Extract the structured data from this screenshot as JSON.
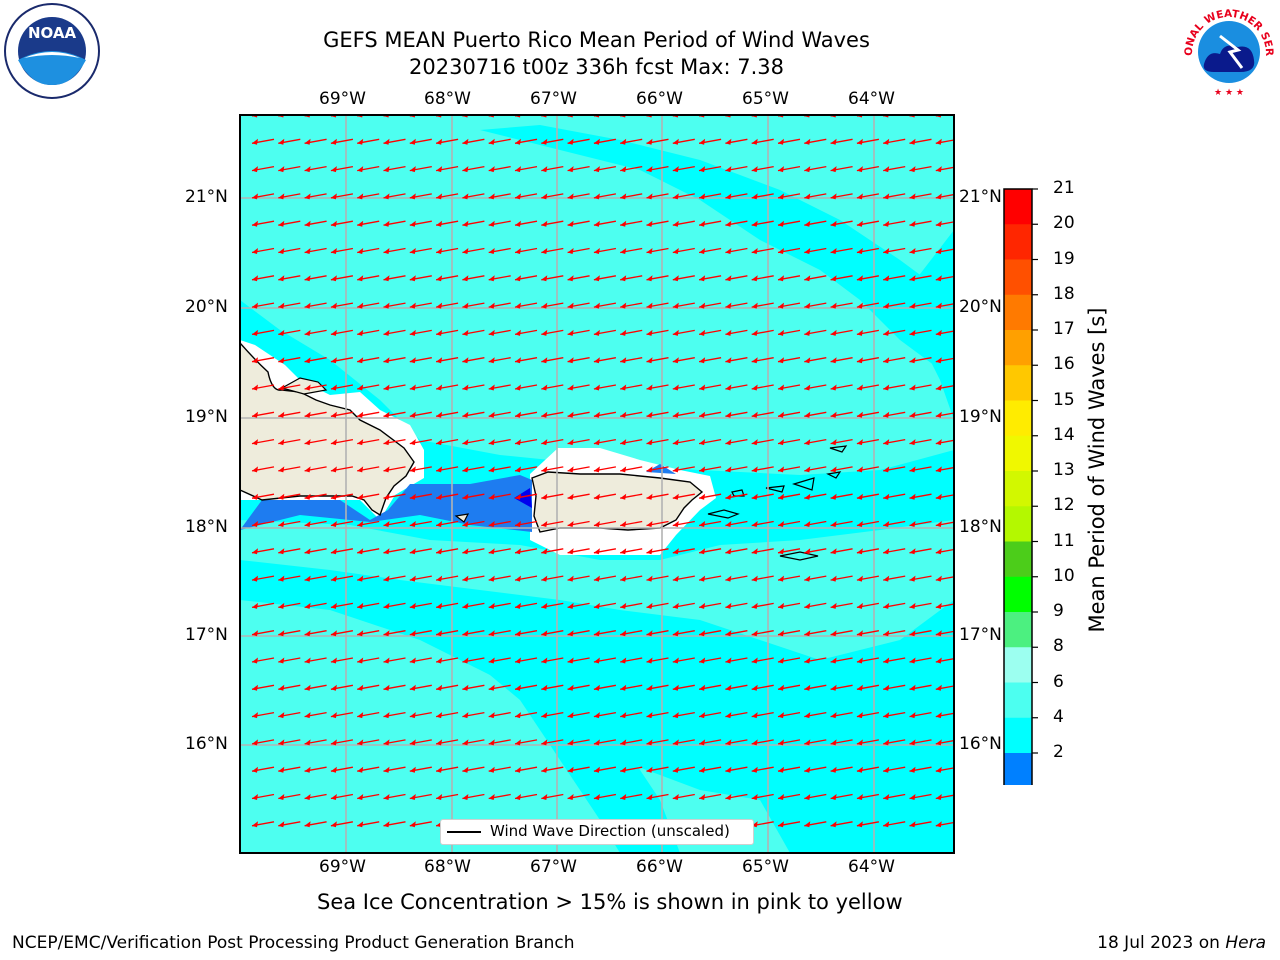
{
  "title": {
    "line1": "GEFS MEAN Puerto Rico Mean Period of Wind Waves",
    "line2": "20230716 t00z 336h fcst   Max: 7.38"
  },
  "axes": {
    "lon_ticks": [
      "69°W",
      "68°W",
      "67°W",
      "66°W",
      "65°W",
      "64°W"
    ],
    "lat_ticks": [
      "21°N",
      "20°N",
      "19°N",
      "18°N",
      "17°N",
      "16°N"
    ]
  },
  "legend": {
    "label": "Wind Wave Direction (unscaled)"
  },
  "colorbar": {
    "label": "Mean Period of Wind Waves [s]",
    "ticks": [
      "21",
      "20",
      "19",
      "18",
      "17",
      "16",
      "15",
      "14",
      "13",
      "12",
      "11",
      "10",
      "9",
      "8",
      "6",
      "4",
      "2"
    ],
    "colors": [
      "#ff0000",
      "#ff2600",
      "#ff5000",
      "#ff7a00",
      "#ffa000",
      "#ffc800",
      "#ffec00",
      "#f0f800",
      "#d2f800",
      "#b4f800",
      "#4ccd1a",
      "#00ff00",
      "#4cf080",
      "#9cfff0",
      "#4cfff0",
      "#00ffff",
      "#0080ff",
      "#0000ff"
    ]
  },
  "map": {
    "colors": {
      "ocean": "#00ffff",
      "ocean_light": "#4dfff0",
      "ocean_blue": "#1e7cf0",
      "land": "#eeecdc",
      "arrow": "#ff0000"
    },
    "wind_direction": "west-southwest"
  },
  "caption": "Sea Ice Concentration > 15% is shown in pink to yellow",
  "footer": {
    "left": "NCEP/EMC/Verification Post Processing Product Generation Branch",
    "date": "18 Jul 2023 on",
    "machine": "Hera"
  },
  "logos": {
    "noaa": "NOAA",
    "nws": "NATIONAL WEATHER SERVICE"
  }
}
